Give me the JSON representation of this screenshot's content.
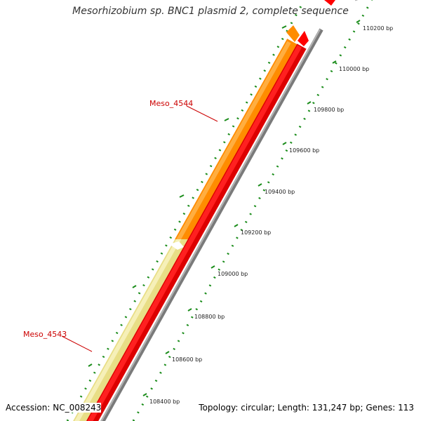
{
  "title": "Mesorhizobium sp. BNC1 plasmid 2, complete sequence",
  "genes": [
    {
      "label": "Meso_4544",
      "color": "#ff8c00"
    },
    {
      "label": "Meso_4543",
      "color": "#f0e68c"
    }
  ],
  "ruler_labels": [
    "110200 bp",
    "110000 bp",
    "109800 bp",
    "109600 bp",
    "109400 bp",
    "109200 bp",
    "109000 bp",
    "108800 bp",
    "108600 bp",
    "108400 bp"
  ],
  "colors": {
    "label_text": "#cc0000",
    "tick": "#1a8c1a",
    "strand_red": "#ff0000",
    "backbone": "#888888"
  },
  "footer": {
    "accession": "Accession: NC_008243",
    "summary": "Topology: circular; Length: 131,247 bp; Genes: 113"
  }
}
